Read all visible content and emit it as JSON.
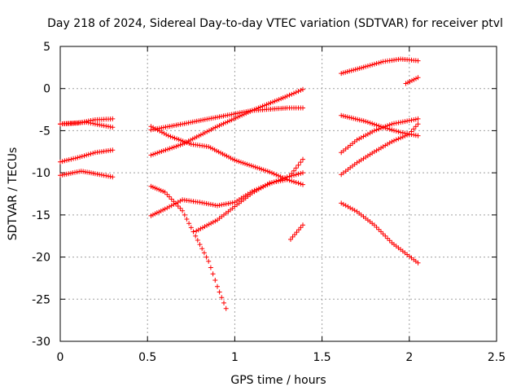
{
  "chart_data": {
    "type": "scatter",
    "title": "Day 218 of 2024, Sidereal Day-to-day VTEC variation (SDTVAR) for receiver ptvl",
    "xlabel": "GPS time / hours",
    "ylabel": "SDTVAR / TECUs",
    "xlim": [
      0,
      2.5
    ],
    "ylim": [
      -30,
      5
    ],
    "xticks": [
      0,
      0.5,
      1,
      1.5,
      2,
      2.5
    ],
    "xtick_labels": [
      "0",
      "0.5",
      "1",
      "1.5",
      "2",
      "2.5"
    ],
    "yticks": [
      -30,
      -25,
      -20,
      -15,
      -10,
      -5,
      0,
      5
    ],
    "ytick_labels": [
      "-30",
      "-25",
      "-20",
      "-15",
      "-10",
      "-5",
      "0",
      "5"
    ],
    "grid": true,
    "marker": "+",
    "color": "#ff0000",
    "series": [
      {
        "name": "s1",
        "points": [
          [
            0.0,
            -4.2
          ],
          [
            0.1,
            -4.1
          ],
          [
            0.2,
            -3.7
          ],
          [
            0.3,
            -3.6
          ]
        ]
      },
      {
        "name": "s2",
        "points": [
          [
            0.0,
            -4.2
          ],
          [
            0.15,
            -4.0
          ],
          [
            0.25,
            -4.4
          ],
          [
            0.3,
            -4.6
          ]
        ]
      },
      {
        "name": "s3",
        "points": [
          [
            0.0,
            -8.7
          ],
          [
            0.1,
            -8.2
          ],
          [
            0.2,
            -7.6
          ],
          [
            0.3,
            -7.3
          ]
        ]
      },
      {
        "name": "s4",
        "points": [
          [
            0.0,
            -10.3
          ],
          [
            0.12,
            -9.8
          ],
          [
            0.2,
            -10.1
          ],
          [
            0.3,
            -10.5
          ]
        ]
      },
      {
        "name": "s5",
        "points": [
          [
            0.52,
            -4.9
          ],
          [
            0.7,
            -4.2
          ],
          [
            0.9,
            -3.4
          ],
          [
            1.1,
            -2.6
          ],
          [
            1.3,
            -2.3
          ],
          [
            1.39,
            -2.3
          ]
        ]
      },
      {
        "name": "s6",
        "points": [
          [
            0.52,
            -7.9
          ],
          [
            0.7,
            -6.6
          ],
          [
            0.9,
            -4.5
          ],
          [
            1.1,
            -2.6
          ],
          [
            1.3,
            -0.9
          ],
          [
            1.39,
            -0.1
          ]
        ]
      },
      {
        "name": "s7",
        "points": [
          [
            0.52,
            -4.5
          ],
          [
            0.62,
            -5.6
          ],
          [
            0.75,
            -6.6
          ],
          [
            0.85,
            -6.9
          ],
          [
            1.0,
            -8.5
          ],
          [
            1.2,
            -9.9
          ],
          [
            1.3,
            -10.8
          ],
          [
            1.39,
            -11.4
          ]
        ]
      },
      {
        "name": "s8",
        "points": [
          [
            0.52,
            -11.6
          ],
          [
            0.6,
            -12.3
          ],
          [
            0.7,
            -14.5
          ],
          [
            0.75,
            -16.5
          ],
          [
            0.8,
            -18.5
          ],
          [
            0.85,
            -20.5
          ],
          [
            0.9,
            -23.5
          ],
          [
            0.95,
            -26.1
          ]
        ]
      },
      {
        "name": "s9",
        "points": [
          [
            0.52,
            -15.1
          ],
          [
            0.6,
            -14.3
          ],
          [
            0.7,
            -13.2
          ],
          [
            0.8,
            -13.5
          ],
          [
            0.9,
            -13.9
          ],
          [
            1.0,
            -13.5
          ],
          [
            1.1,
            -12.2
          ],
          [
            1.2,
            -11.3
          ],
          [
            1.3,
            -10.5
          ],
          [
            1.39,
            -10.0
          ]
        ]
      },
      {
        "name": "s10",
        "points": [
          [
            0.78,
            -16.9
          ],
          [
            0.9,
            -15.6
          ],
          [
            1.0,
            -14.0
          ],
          [
            1.1,
            -12.4
          ],
          [
            1.2,
            -11.2
          ],
          [
            1.3,
            -10.8
          ],
          [
            1.39,
            -8.4
          ]
        ]
      },
      {
        "name": "s11",
        "points": [
          [
            1.32,
            -17.9
          ],
          [
            1.39,
            -16.2
          ]
        ]
      },
      {
        "name": "s12",
        "points": [
          [
            1.61,
            1.8
          ],
          [
            1.75,
            2.6
          ],
          [
            1.85,
            3.2
          ],
          [
            1.95,
            3.5
          ],
          [
            2.05,
            3.3
          ]
        ]
      },
      {
        "name": "s13",
        "points": [
          [
            1.98,
            0.6
          ],
          [
            2.05,
            1.3
          ]
        ]
      },
      {
        "name": "s14",
        "points": [
          [
            1.61,
            -3.2
          ],
          [
            1.75,
            -3.9
          ],
          [
            1.85,
            -4.6
          ],
          [
            1.95,
            -5.2
          ],
          [
            2.05,
            -5.6
          ]
        ]
      },
      {
        "name": "s15",
        "points": [
          [
            1.61,
            -7.6
          ],
          [
            1.7,
            -6.1
          ],
          [
            1.8,
            -5.0
          ],
          [
            1.9,
            -4.2
          ],
          [
            2.05,
            -3.6
          ]
        ]
      },
      {
        "name": "s16",
        "points": [
          [
            1.61,
            -10.2
          ],
          [
            1.7,
            -8.8
          ],
          [
            1.8,
            -7.5
          ],
          [
            1.9,
            -6.3
          ],
          [
            2.0,
            -5.4
          ],
          [
            2.05,
            -4.2
          ]
        ]
      },
      {
        "name": "s17",
        "points": [
          [
            1.61,
            -13.6
          ],
          [
            1.7,
            -14.6
          ],
          [
            1.8,
            -16.2
          ],
          [
            1.9,
            -18.3
          ],
          [
            2.05,
            -20.7
          ]
        ]
      }
    ]
  }
}
